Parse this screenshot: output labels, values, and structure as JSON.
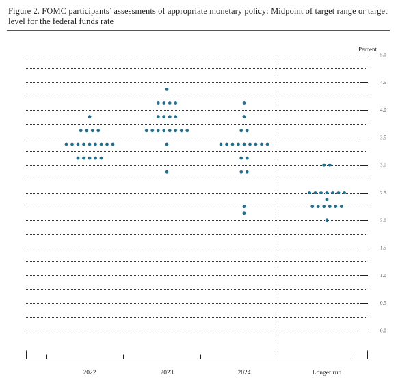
{
  "figure": {
    "title": "Figure 2.  FOMC participants’ assessments of appropriate monetary policy:  Midpoint of target range or target level for the federal funds rate"
  },
  "chart_data": {
    "type": "scatter",
    "title": "Figure 2.  FOMC participants’ assessments of appropriate monetary policy:  Midpoint of target range or target level for the federal funds rate",
    "unit_label": "Percent",
    "categories": [
      "2022",
      "2023",
      "2024",
      "Longer run"
    ],
    "ylim": [
      0,
      5
    ],
    "y_ticks": [
      "0.0",
      "0.5",
      "1.0",
      "1.5",
      "2.0",
      "2.5",
      "3.0",
      "3.5",
      "4.0",
      "4.5",
      "5.0"
    ],
    "grid": "dotted horizontal lines every 0.25",
    "dot_color": "#1f6f91",
    "series": [
      {
        "category": "2022",
        "points": [
          {
            "y": 3.875,
            "count": 1
          },
          {
            "y": 3.625,
            "count": 4
          },
          {
            "y": 3.375,
            "count": 9
          },
          {
            "y": 3.125,
            "count": 5
          }
        ]
      },
      {
        "category": "2023",
        "points": [
          {
            "y": 4.375,
            "count": 1
          },
          {
            "y": 4.125,
            "count": 4
          },
          {
            "y": 3.875,
            "count": 4
          },
          {
            "y": 3.625,
            "count": 8
          },
          {
            "y": 3.375,
            "count": 1
          },
          {
            "y": 2.875,
            "count": 1
          }
        ]
      },
      {
        "category": "2024",
        "points": [
          {
            "y": 4.125,
            "count": 1
          },
          {
            "y": 3.875,
            "count": 1
          },
          {
            "y": 3.625,
            "count": 2
          },
          {
            "y": 3.375,
            "count": 9
          },
          {
            "y": 3.125,
            "count": 2
          },
          {
            "y": 2.875,
            "count": 2
          },
          {
            "y": 2.25,
            "count": 1
          },
          {
            "y": 2.125,
            "count": 1
          }
        ]
      },
      {
        "category": "Longer run",
        "points": [
          {
            "y": 3.0,
            "count": 2
          },
          {
            "y": 2.5,
            "count": 7
          },
          {
            "y": 2.375,
            "count": 1
          },
          {
            "y": 2.25,
            "count": 6
          },
          {
            "y": 2.0,
            "count": 1
          }
        ]
      }
    ]
  }
}
